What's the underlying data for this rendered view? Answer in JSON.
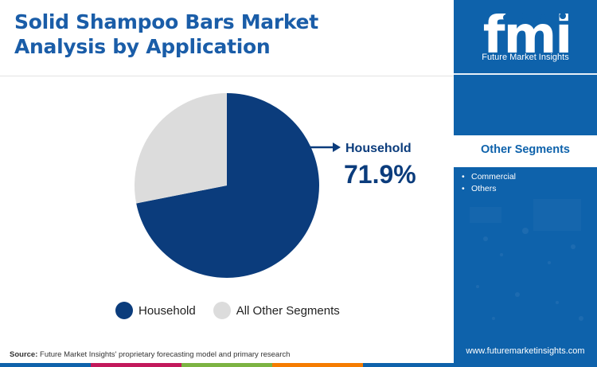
{
  "title": "Solid Shampoo Bars Market Analysis by Application",
  "chart_data": {
    "type": "pie",
    "slices": [
      {
        "label": "Household",
        "value": 71.9,
        "color": "#0b3c7c"
      },
      {
        "label": "All Other Segments",
        "value": 28.1,
        "color": "#dcdcdc"
      }
    ],
    "callout": {
      "label": "Household",
      "value_text": "71.9%"
    },
    "legend": [
      "Household",
      "All Other Segments"
    ],
    "legend_position": "bottom"
  },
  "source": {
    "prefix": "Source:",
    "text": " Future Market Insights' proprietary forecasting model and primary research"
  },
  "brand": {
    "logo_text": "fmi",
    "logo_subtitle": "Future Market Insights",
    "website": "www.futuremarketinsights.com",
    "panel_color": "#0e62ab"
  },
  "other_segments": {
    "title": "Other Segments",
    "items": [
      "Commercial",
      "Others"
    ]
  },
  "bottom_bar_colors": [
    "#0e62ab",
    "#c2185b",
    "#7cb342",
    "#f57c00",
    "#0e62ab"
  ]
}
